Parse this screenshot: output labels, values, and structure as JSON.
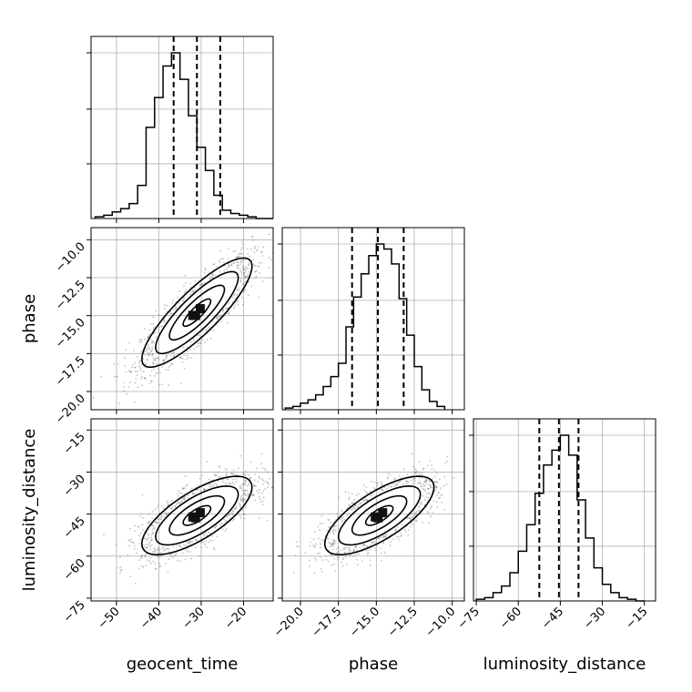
{
  "chart_data": {
    "type": "corner",
    "parameters": [
      {
        "name": "geocent_time",
        "label": "geocent_time",
        "range": [
          -56,
          -13
        ],
        "ticks": [
          -50,
          -40,
          -30,
          -20
        ],
        "tick_labels": [
          "−50",
          "−40",
          "−30",
          "−20"
        ],
        "quantiles": [
          -36.5,
          -31,
          -25.5
        ]
      },
      {
        "name": "phase",
        "label": "phase",
        "range": [
          -21.2,
          -9.2
        ],
        "ticks": [
          -20.0,
          -17.5,
          -15.0,
          -12.5,
          -10.0
        ],
        "tick_labels": [
          "−20.0",
          "−17.5",
          "−15.0",
          "−12.5",
          "−10.0"
        ],
        "quantiles": [
          -16.6,
          -14.9,
          -13.2
        ]
      },
      {
        "name": "luminosity_distance",
        "label": "luminosity_distance",
        "range": [
          -76,
          -11
        ],
        "ticks": [
          -75,
          -60,
          -45,
          -30,
          -15
        ],
        "tick_labels": [
          "−75",
          "−60",
          "−45",
          "−30",
          "−15"
        ],
        "quantiles": [
          -52.5,
          -45.5,
          -38.5
        ]
      }
    ],
    "histograms": [
      {
        "parameter": "geocent_time",
        "bins": [
          -55,
          -53,
          -51,
          -49,
          -47,
          -45,
          -43,
          -41,
          -39,
          -37,
          -35,
          -33,
          -31,
          -29,
          -27,
          -25,
          -23,
          -21,
          -19,
          -17,
          -15,
          -13
        ],
        "counts": [
          0.01,
          0.02,
          0.04,
          0.06,
          0.09,
          0.2,
          0.55,
          0.73,
          0.92,
          1.0,
          0.84,
          0.62,
          0.43,
          0.29,
          0.14,
          0.05,
          0.03,
          0.02,
          0.01,
          0.0,
          0.0
        ],
        "yticks": [
          0.33,
          0.66,
          1.0
        ]
      },
      {
        "parameter": "phase",
        "bins": [
          -21.0,
          -20.5,
          -20.0,
          -19.5,
          -19.0,
          -18.5,
          -18.0,
          -17.5,
          -17.0,
          -16.5,
          -16.0,
          -15.5,
          -15.0,
          -14.5,
          -14.0,
          -13.5,
          -13.0,
          -12.5,
          -12.0,
          -11.5,
          -11.0,
          -10.5
        ],
        "counts": [
          0.01,
          0.02,
          0.04,
          0.06,
          0.09,
          0.14,
          0.2,
          0.28,
          0.5,
          0.68,
          0.82,
          0.93,
          1.0,
          0.97,
          0.88,
          0.67,
          0.45,
          0.26,
          0.12,
          0.05,
          0.02
        ],
        "yticks": [
          0.33,
          0.66,
          1.0
        ]
      },
      {
        "parameter": "luminosity_distance",
        "bins": [
          -75,
          -72,
          -69,
          -66,
          -63,
          -60,
          -57,
          -54,
          -51,
          -48,
          -45,
          -42,
          -39,
          -36,
          -33,
          -30,
          -27,
          -24,
          -21,
          -18,
          -15
        ],
        "counts": [
          0.01,
          0.02,
          0.05,
          0.09,
          0.17,
          0.3,
          0.46,
          0.65,
          0.82,
          0.91,
          1.0,
          0.88,
          0.61,
          0.38,
          0.2,
          0.1,
          0.05,
          0.02,
          0.01,
          0.0
        ],
        "yticks": [
          0.33,
          0.66,
          1.0
        ]
      }
    ],
    "pairs": [
      {
        "x": "geocent_time",
        "y": "phase",
        "mean": [
          -31,
          -14.8
        ],
        "sigma": [
          6.5,
          1.8
        ],
        "correlation": 0.85
      },
      {
        "x": "geocent_time",
        "y": "luminosity_distance",
        "mean": [
          -31,
          -45.5
        ],
        "sigma": [
          6.5,
          7.0
        ],
        "correlation": 0.72
      },
      {
        "x": "phase",
        "y": "luminosity_distance",
        "mean": [
          -14.8,
          -45.5
        ],
        "sigma": [
          1.8,
          7.0
        ],
        "correlation": 0.72
      }
    ],
    "contour_levels_sigma": [
      0.5,
      1.0,
      1.5,
      2.0
    ],
    "grid": true
  }
}
